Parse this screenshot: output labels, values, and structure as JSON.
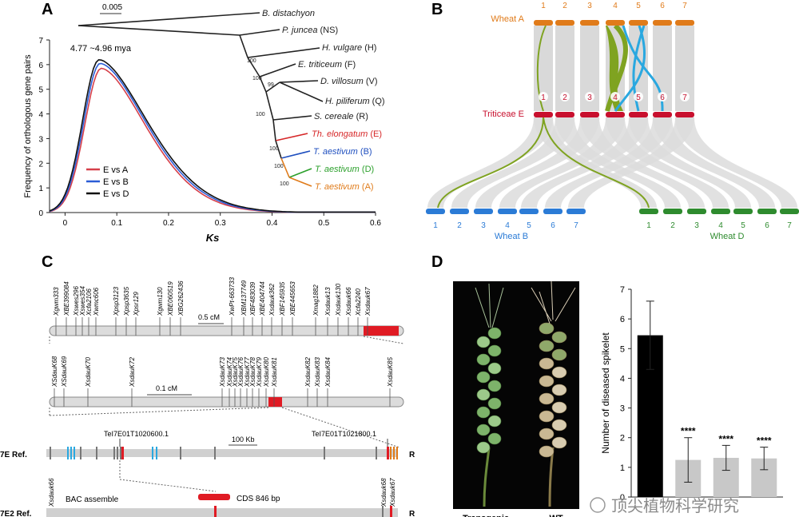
{
  "panels": {
    "a": "A",
    "b": "B",
    "c": "C",
    "d": "D"
  },
  "panelA": {
    "scale_label": "0.005",
    "tree": [
      {
        "label": "B. distachyon",
        "suffix": "",
        "color": "#222222"
      },
      {
        "label": "P. juncea",
        "suffix": " (NS)",
        "color": "#222222"
      },
      {
        "label": "H. vulgare",
        "suffix": " (H)",
        "color": "#222222"
      },
      {
        "label": "E. triticeum",
        "suffix": " (F)",
        "color": "#222222"
      },
      {
        "label": "D. villosum",
        "suffix": " (V)",
        "color": "#222222"
      },
      {
        "label": "H. piliferum",
        "suffix": " (Q)",
        "color": "#222222"
      },
      {
        "label": "S. cereale",
        "suffix": " (R)",
        "color": "#222222"
      },
      {
        "label": "Th. elongatum",
        "suffix": " (E)",
        "color": "#d62728"
      },
      {
        "label": "T. aestivum",
        "suffix": " (B)",
        "color": "#1f4fbf"
      },
      {
        "label": "T. aestivum",
        "suffix": " (D)",
        "color": "#2ca02c"
      },
      {
        "label": "T. aestivum",
        "suffix": " (A)",
        "color": "#e07b1a"
      }
    ],
    "bootstrap": [
      "100",
      "100",
      "99",
      "100",
      "100",
      "100",
      "100"
    ],
    "chart_data": {
      "type": "line",
      "xlabel": "Ks",
      "ylabel": "Frequency of orthologous gene pairs",
      "xlim": [
        -0.03,
        0.6
      ],
      "ylim": [
        0,
        7
      ],
      "xticks": [
        "0",
        "0.1",
        "0.2",
        "0.3",
        "0.4",
        "0.5",
        "0.6"
      ],
      "yticks": [
        "0",
        "1",
        "2",
        "3",
        "4",
        "5",
        "6",
        "7"
      ],
      "annotation": "4.77 ~4.96 mya",
      "legend_position": "center-left",
      "series": [
        {
          "name": "E vs A",
          "color": "#d6404a",
          "peak_x": 0.07,
          "peak_y": 5.85
        },
        {
          "name": "E vs B",
          "color": "#2b5cd6",
          "peak_x": 0.068,
          "peak_y": 6.05
        },
        {
          "name": "E vs D",
          "color": "#111111",
          "peak_x": 0.066,
          "peak_y": 6.2
        }
      ]
    }
  },
  "panelB": {
    "wheatA_label": "Wheat A",
    "triticeae_label": "Triticeae E",
    "wheatB_label": "Wheat B",
    "wheatD_label": "Wheat D",
    "chrom_numbers": [
      "1",
      "2",
      "3",
      "4",
      "5",
      "6",
      "7"
    ],
    "colors": {
      "wheatA": "#e07b1a",
      "triticeae": "#c8102e",
      "wheatB": "#2b7bd6",
      "wheatD": "#2e8b2e",
      "olive": "#7fa321",
      "cyan": "#2aa8e0"
    }
  },
  "panelC": {
    "markers_top": [
      "Xgwm333",
      "XBE399084",
      "Xswes296",
      "Xswes354",
      "Xcfa2106",
      "Xwmc606",
      "Xpsp3123",
      "Xpsp3635",
      "Xpsr129",
      "Xgwm130",
      "XBE060519",
      "XBG262436",
      "XwPt-663733",
      "XBM137749",
      "XBF483039",
      "XBE404744",
      "Xsdauk362",
      "XBF145935",
      "XBE445653",
      "Xmag1882",
      "Xsdauk13",
      "Xsdauk130",
      "Xsdauk66",
      "Xcfa2240",
      "Xsdauk67"
    ],
    "scale_top": "0.5 cM",
    "markers_mid": [
      "XSdauK68",
      "XSdauK69",
      "XsdauK70",
      "XsdauK72",
      "XsdauK73",
      "XsdauK74",
      "XsdauK75",
      "XsdauK76",
      "XsdauK77",
      "XsdauK78",
      "XsdauK79",
      "XsdauK80",
      "XsdauK81",
      "XsdauK82",
      "XsdauK83",
      "XsdauK84",
      "XsdauK85"
    ],
    "scale_mid": "0.1 cM",
    "gene_left": "TeI7E01T1020600.1",
    "gene_right": "TeI7E01T1021800.1",
    "scale_bottom": "100 Kb",
    "row1_label": "7E  Ref.",
    "row1_end": "R",
    "row2_label": "7E2  Ref.",
    "row2_end": "R",
    "bac_label": "BAC assemble",
    "cds_label": "CDS 846 bp",
    "marker_bl": "Xsdauk66",
    "marker_br1": "Xsdauk68",
    "marker_br2": "Xsdauk67"
  },
  "panelD": {
    "photo_labels": [
      "Transgenic",
      "WT"
    ],
    "chart_data": {
      "type": "bar",
      "ylabel": "Number of diseased spikelet",
      "ylim": [
        0,
        7
      ],
      "yticks": [
        "0",
        "1",
        "2",
        "3",
        "4",
        "5",
        "6",
        "7"
      ],
      "values": [
        5.45,
        1.25,
        1.32,
        1.3
      ],
      "errors": [
        1.15,
        0.75,
        0.42,
        0.38
      ],
      "colors": [
        "#000000",
        "#c8c8c8",
        "#c8c8c8",
        "#c8c8c8"
      ],
      "significance": [
        "",
        "****",
        "****",
        "****"
      ]
    }
  },
  "watermark": "顶尖植物科学研究"
}
